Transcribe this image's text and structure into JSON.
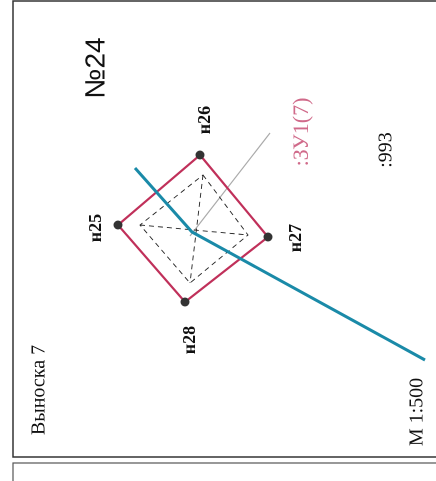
{
  "header": {
    "title": "№24",
    "callout": "Выноска 7",
    "scale": "М 1:500"
  },
  "parcels": [
    {
      "label": ":ЗУ1(7)"
    },
    {
      "label": ":993"
    }
  ],
  "nodes": [
    {
      "label": "н26"
    },
    {
      "label": "н25"
    },
    {
      "label": "н27"
    },
    {
      "label": "н28"
    }
  ]
}
